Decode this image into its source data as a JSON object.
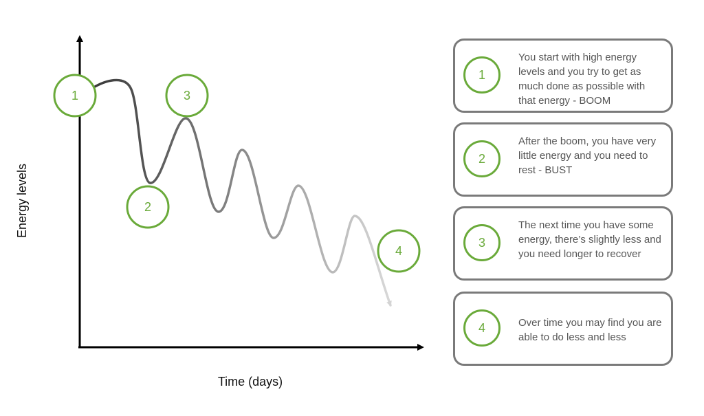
{
  "axes": {
    "y_label": "Energy levels",
    "x_label": "Time (days)"
  },
  "markers": [
    {
      "number": "1"
    },
    {
      "number": "2"
    },
    {
      "number": "3"
    },
    {
      "number": "4"
    }
  ],
  "cards": [
    {
      "number": "1",
      "text": "You start with high energy levels and you try to get as much done as possible with that energy - BOOM"
    },
    {
      "number": "2",
      "text": "After the boom, you have very little energy and you need to rest - BUST"
    },
    {
      "number": "3",
      "text": "The next time you have some energy, there’s slightly less and you need longer to recover"
    },
    {
      "number": "4",
      "text": "Over time you may find you are able to do less and less"
    }
  ],
  "colors": {
    "accent_green": "#6aaa3a",
    "card_border": "#7a7a7a",
    "axis": "#000000"
  }
}
